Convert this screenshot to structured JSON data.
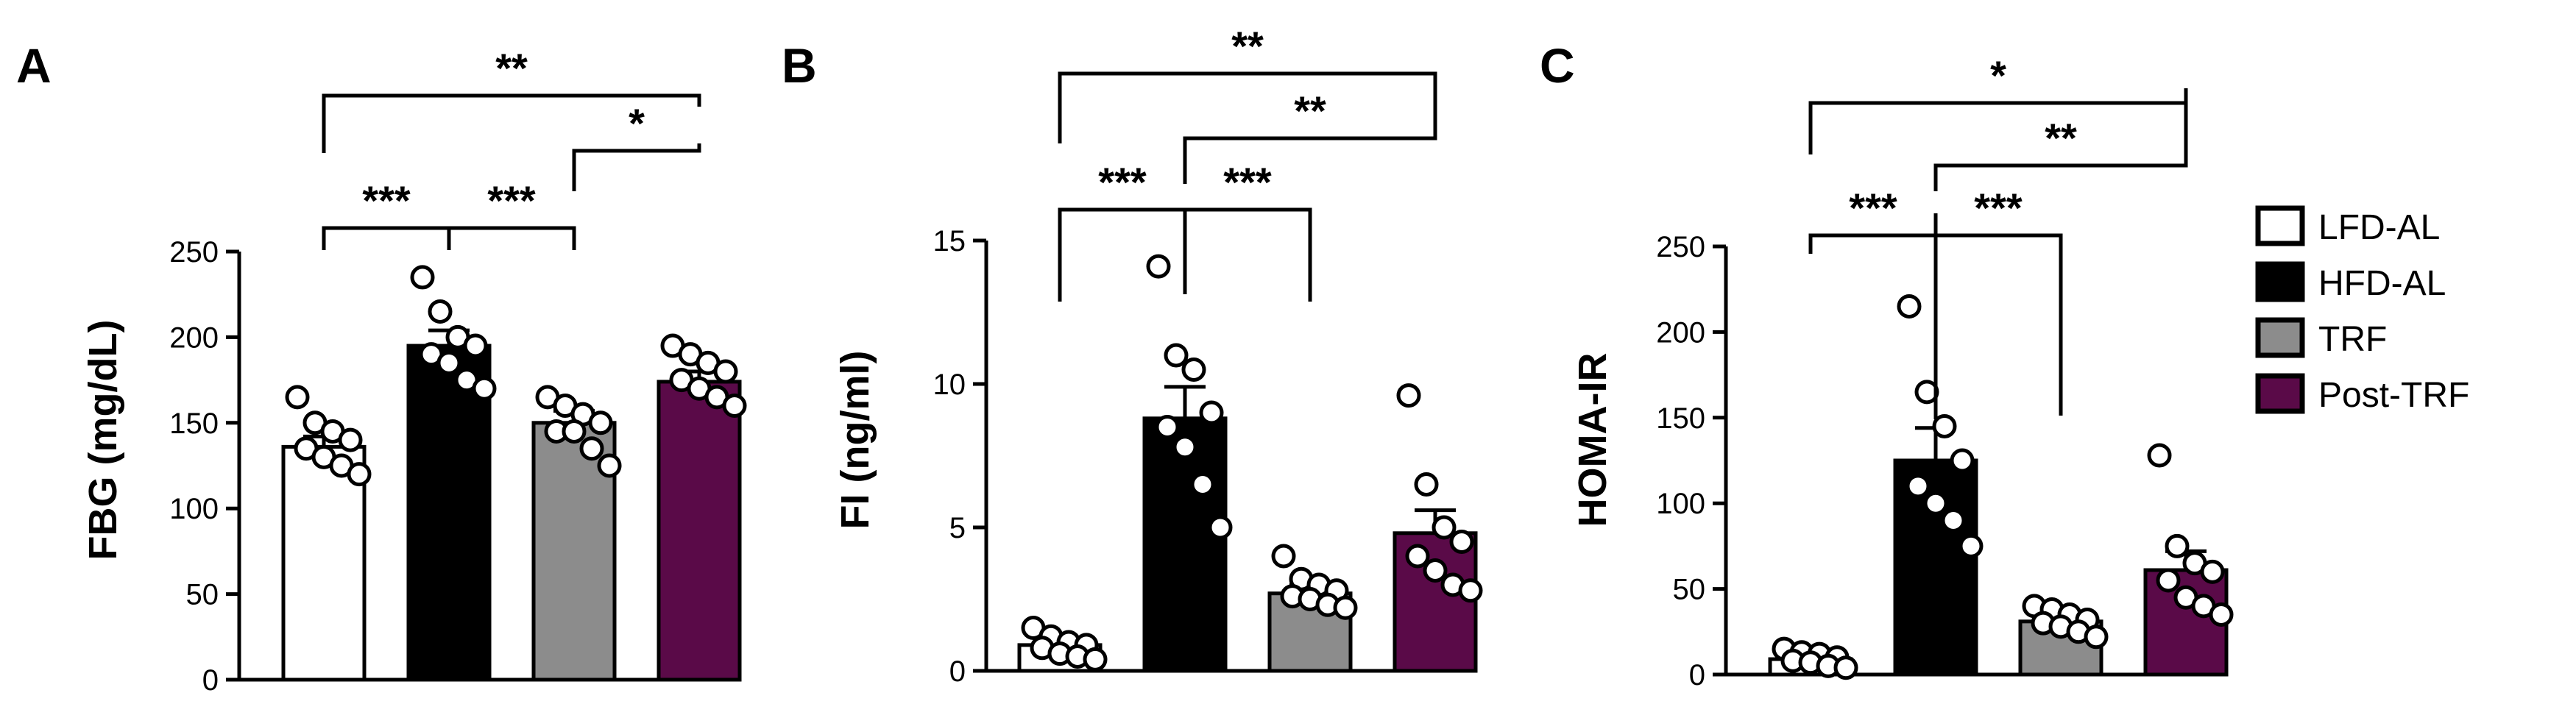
{
  "legend": [
    {
      "label": "LFD-AL",
      "color": "#ffffff"
    },
    {
      "label": "HFD-AL",
      "color": "#000000"
    },
    {
      "label": "TRF",
      "color": "#8c8c8c"
    },
    {
      "label": "Post-TRF",
      "color": "#5a0a48"
    }
  ],
  "chart_data": [
    {
      "type": "bar",
      "panel": "A",
      "ylabel": "FBG (mg/dL)",
      "ylim": [
        0,
        250
      ],
      "yticks": [
        "0",
        "50",
        "100",
        "150",
        "200",
        "250"
      ],
      "categories": [
        "LFD-AL",
        "HFD-AL",
        "TRF",
        "Post-TRF"
      ],
      "values": [
        136,
        195,
        150,
        174
      ],
      "sem": [
        6,
        9,
        7,
        6
      ],
      "points": [
        [
          165,
          150,
          145,
          140,
          135,
          130,
          125,
          120
        ],
        [
          235,
          215,
          200,
          195,
          190,
          185,
          175,
          170
        ],
        [
          165,
          160,
          155,
          150,
          145,
          145,
          135,
          125
        ],
        [
          195,
          190,
          185,
          180,
          175,
          170,
          165,
          160
        ]
      ],
      "brackets": [
        {
          "from": 0,
          "to": 3,
          "label": "**"
        },
        {
          "from": 2,
          "to": 3,
          "label": "*"
        },
        {
          "from": 0,
          "to": 1,
          "label": "***"
        },
        {
          "from": 1,
          "to": 2,
          "label": "***"
        }
      ]
    },
    {
      "type": "bar",
      "panel": "B",
      "ylabel": "FI (ng/ml)",
      "ylim": [
        0,
        15
      ],
      "yticks": [
        "0",
        "5",
        "10",
        "15"
      ],
      "categories": [
        "LFD-AL",
        "HFD-AL",
        "TRF",
        "Post-TRF"
      ],
      "values": [
        0.9,
        8.8,
        2.7,
        4.8
      ],
      "sem": [
        0.2,
        1.1,
        0.3,
        0.8
      ],
      "points": [
        [
          1.5,
          1.2,
          1.0,
          0.9,
          0.8,
          0.6,
          0.5,
          0.4
        ],
        [
          14.1,
          11.0,
          10.5,
          9.0,
          8.5,
          7.8,
          6.5,
          5.0
        ],
        [
          4.0,
          3.2,
          3.0,
          2.8,
          2.6,
          2.5,
          2.3,
          2.2
        ],
        [
          9.6,
          6.5,
          5.0,
          4.5,
          4.0,
          3.5,
          3.0,
          2.8
        ]
      ],
      "brackets": [
        {
          "from": 0,
          "to": 3,
          "label": "**"
        },
        {
          "from": 1,
          "to": 3,
          "label": "**"
        },
        {
          "from": 0,
          "to": 1,
          "label": "***"
        },
        {
          "from": 1,
          "to": 2,
          "label": "***"
        }
      ]
    },
    {
      "type": "bar",
      "panel": "C",
      "ylabel": "HOMA-IR",
      "ylim": [
        0,
        250
      ],
      "yticks": [
        "0",
        "50",
        "100",
        "150",
        "200",
        "250"
      ],
      "categories": [
        "LFD-AL",
        "HFD-AL",
        "TRF",
        "Post-TRF"
      ],
      "values": [
        9,
        125,
        31,
        61
      ],
      "sem": [
        2,
        19,
        4,
        11
      ],
      "points": [
        [
          15,
          13,
          12,
          10,
          8,
          7,
          5,
          4
        ],
        [
          215,
          165,
          145,
          125,
          110,
          100,
          90,
          75
        ],
        [
          40,
          38,
          35,
          32,
          30,
          28,
          25,
          22
        ],
        [
          128,
          75,
          65,
          60,
          55,
          45,
          40,
          35
        ]
      ],
      "brackets": [
        {
          "from": 0,
          "to": 3,
          "label": "*"
        },
        {
          "from": 1,
          "to": 3,
          "label": "**"
        },
        {
          "from": 0,
          "to": 1,
          "label": "***"
        },
        {
          "from": 1,
          "to": 2,
          "label": "***"
        }
      ]
    }
  ]
}
